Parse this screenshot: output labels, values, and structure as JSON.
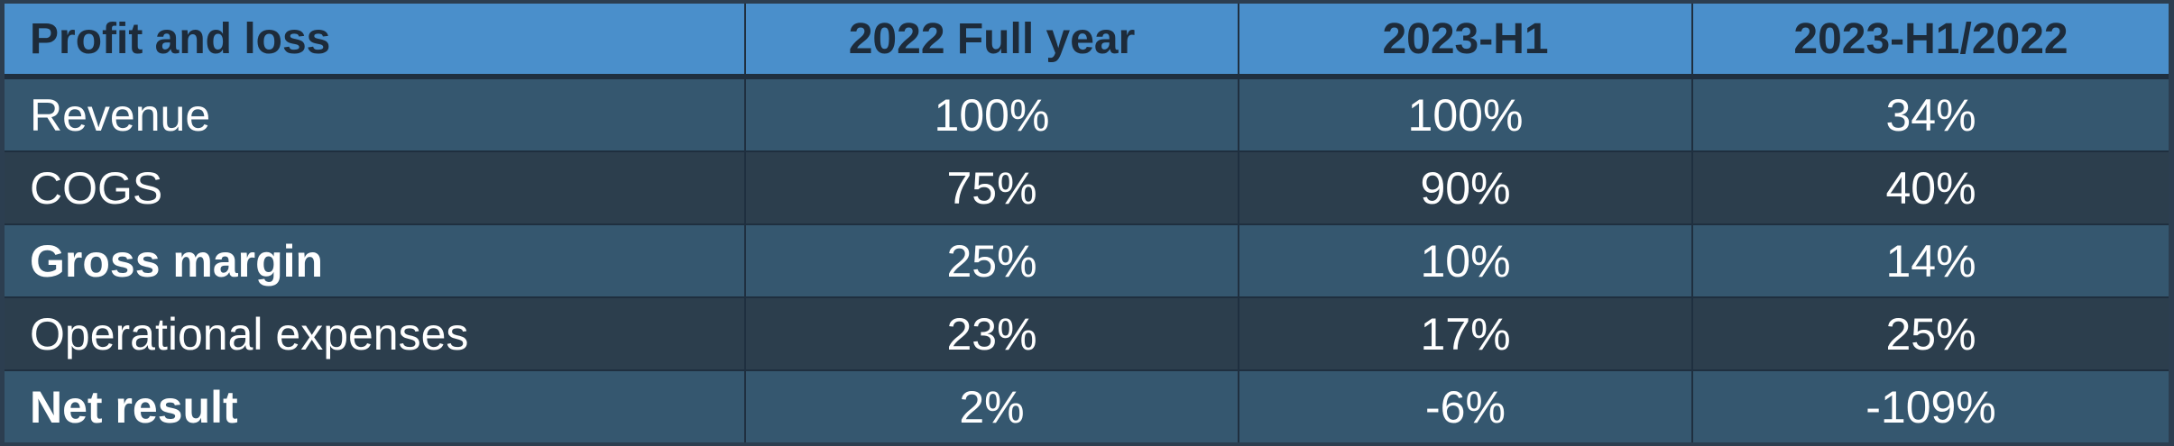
{
  "chart_data": {
    "type": "table",
    "columns": [
      "Profit and loss",
      "2022 Full year",
      "2023-H1",
      "2023-H1/2022"
    ],
    "rows": [
      {
        "label": "Revenue",
        "bold": false,
        "values": [
          "100%",
          "100%",
          "34%"
        ]
      },
      {
        "label": "COGS",
        "bold": false,
        "values": [
          "75%",
          "90%",
          "40%"
        ]
      },
      {
        "label": "Gross margin",
        "bold": true,
        "values": [
          "25%",
          "10%",
          "14%"
        ]
      },
      {
        "label": "Operational expenses",
        "bold": false,
        "values": [
          "23%",
          "17%",
          "25%"
        ]
      },
      {
        "label": "Net result",
        "bold": true,
        "values": [
          "2%",
          "-6%",
          "-109%"
        ]
      }
    ]
  },
  "colors": {
    "header_bg": "#4a8fcb",
    "header_text": "#1d2b3a",
    "row_light": "#35576f",
    "row_dark": "#2c3e4d",
    "border": "#1f2f3f"
  }
}
